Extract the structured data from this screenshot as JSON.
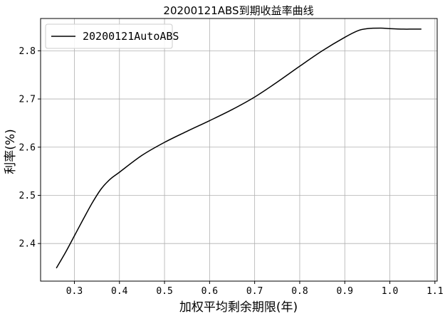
{
  "chart_data": {
    "type": "line",
    "title": "20200121ABS到期收益率曲线",
    "xlabel": "加权平均剩余期限(年)",
    "ylabel": "利率(%)",
    "xlim": [
      0.225,
      1.105
    ],
    "ylim": [
      2.322,
      2.867
    ],
    "xticks": [
      0.3,
      0.4,
      0.5,
      0.6,
      0.7,
      0.8,
      0.9,
      1.0,
      1.1
    ],
    "yticks": [
      2.4,
      2.5,
      2.6,
      2.7,
      2.8
    ],
    "grid": true,
    "legend_position": "top-left",
    "series": [
      {
        "name": "20200121AutoABS",
        "color": "#000000",
        "x": [
          0.26,
          0.28,
          0.3,
          0.32,
          0.34,
          0.36,
          0.38,
          0.4,
          0.45,
          0.5,
          0.55,
          0.6,
          0.65,
          0.7,
          0.75,
          0.8,
          0.85,
          0.9,
          0.93,
          0.95,
          0.98,
          1.0,
          1.03,
          1.05,
          1.07
        ],
        "y": [
          2.349,
          2.381,
          2.416,
          2.451,
          2.485,
          2.514,
          2.534,
          2.548,
          2.583,
          2.61,
          2.633,
          2.655,
          2.678,
          2.704,
          2.735,
          2.768,
          2.8,
          2.828,
          2.842,
          2.846,
          2.847,
          2.846,
          2.845,
          2.845,
          2.845
        ]
      }
    ]
  }
}
